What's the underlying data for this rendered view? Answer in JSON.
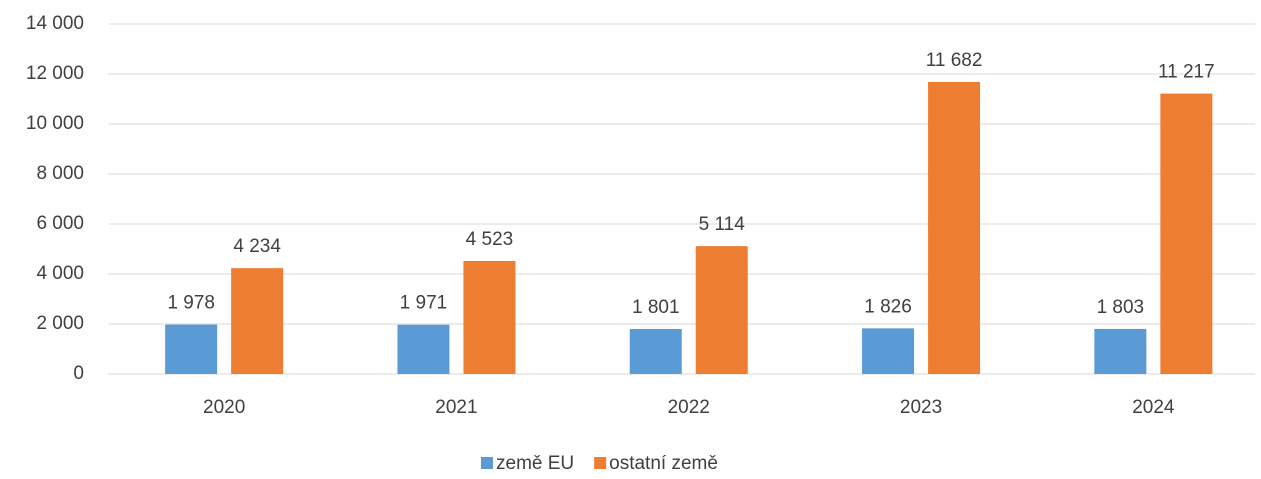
{
  "chart_data": {
    "type": "bar",
    "categories": [
      "2020",
      "2021",
      "2022",
      "2023",
      "2024"
    ],
    "series": [
      {
        "name": "země EU",
        "color": "#5b9bd5",
        "values": [
          1978,
          1971,
          1801,
          1826,
          1803
        ],
        "value_labels": [
          "1 978",
          "1 971",
          "1 801",
          "1 826",
          "1 803"
        ]
      },
      {
        "name": "ostatní země",
        "color": "#ed7d31",
        "values": [
          4234,
          4523,
          5114,
          11682,
          11217
        ],
        "value_labels": [
          "4 234",
          "4 523",
          "5 114",
          "11 682",
          "11 217"
        ]
      }
    ],
    "ylim": [
      0,
      14000
    ],
    "yticks": [
      0,
      {
        "value": 2000,
        "label": "2 000"
      },
      {
        "value": 4000,
        "label": "4 000"
      },
      {
        "value": 6000,
        "label": "6 000"
      },
      {
        "value": 8000,
        "label": "8 000"
      },
      {
        "value": 10000,
        "label": "10 000"
      },
      {
        "value": 12000,
        "label": "12 000"
      },
      {
        "value": 14000,
        "label": "14 000"
      }
    ],
    "grid": true,
    "legend": "bottom"
  }
}
